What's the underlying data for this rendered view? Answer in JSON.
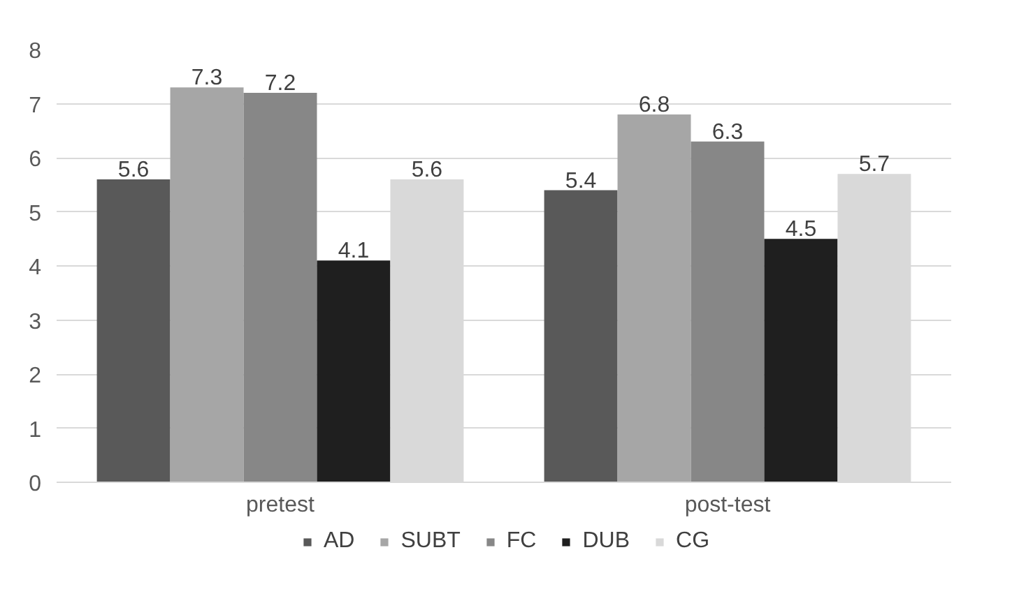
{
  "chart_data": {
    "type": "bar",
    "categories": [
      "pretest",
      "post-test"
    ],
    "series": [
      {
        "name": "AD",
        "color": "#595959",
        "values": [
          5.6,
          5.4
        ]
      },
      {
        "name": "SUBT",
        "color": "#a6a6a6",
        "values": [
          7.3,
          6.8
        ]
      },
      {
        "name": "FC",
        "color": "#878787",
        "values": [
          7.2,
          6.3
        ]
      },
      {
        "name": "DUB",
        "color": "#1f1f1f",
        "values": [
          4.1,
          4.5
        ]
      },
      {
        "name": "CG",
        "color": "#d9d9d9",
        "values": [
          5.6,
          5.7
        ]
      }
    ],
    "ylim": [
      0,
      8
    ],
    "yticks": [
      0,
      1,
      2,
      3,
      4,
      5,
      6,
      7,
      8
    ],
    "grid": "y",
    "legend": "bottom",
    "data_labels": true
  }
}
